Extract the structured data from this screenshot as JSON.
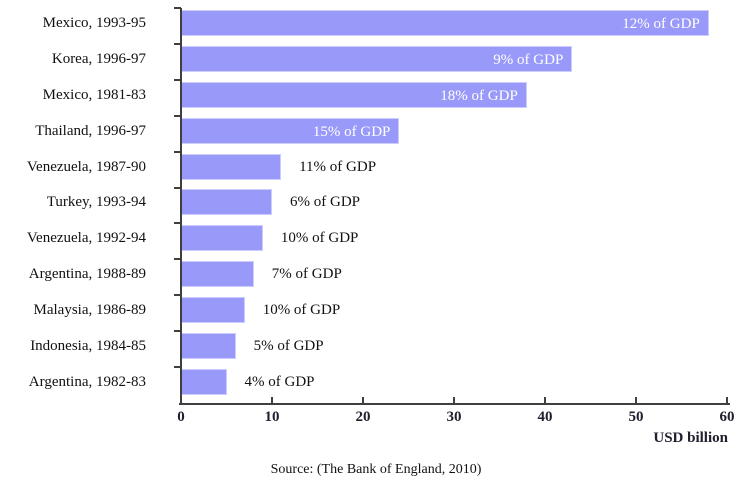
{
  "chart_data": {
    "type": "bar",
    "orientation": "horizontal",
    "title": "",
    "xlabel": "USD billion",
    "ylabel": "",
    "xlim": [
      0,
      60
    ],
    "xticks": [
      0,
      10,
      20,
      30,
      40,
      50,
      60
    ],
    "grid": false,
    "legend": "none",
    "bar_color": "#9999fa",
    "bar_border_color": "#ccccff",
    "categories": [
      "Mexico, 1993-95",
      "Korea, 1996-97",
      "Mexico, 1981-83",
      "Thailand, 1996-97",
      "Venezuela, 1987-90",
      "Turkey, 1993-94",
      "Venezuela, 1992-94",
      "Argentina, 1988-89",
      "Malaysia, 1986-89",
      "Indonesia, 1984-85",
      "Argentina, 1982-83"
    ],
    "values": [
      58,
      43,
      38,
      24,
      11,
      10,
      9,
      8,
      7,
      6,
      5
    ],
    "bar_labels": [
      "12% of GDP",
      "9% of GDP",
      "18% of GDP",
      "15% of GDP",
      "11% of GDP",
      "6% of GDP",
      "10% of GDP",
      "7% of GDP",
      "10% of GDP",
      "5% of GDP",
      "4% of GDP"
    ],
    "bar_label_inside": [
      true,
      true,
      true,
      true,
      false,
      false,
      false,
      false,
      false,
      false,
      false
    ]
  },
  "source_caption": "Source: (The Bank of England, 2010)"
}
